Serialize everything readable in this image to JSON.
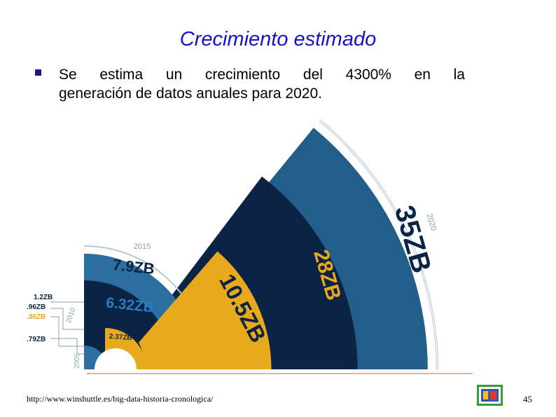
{
  "slide": {
    "title": "Crecimiento estimado",
    "bullet_line1": "Se estima un crecimiento del 4300% en la",
    "bullet_line2": "generación de datos anuales para 2020.",
    "source_url": "http://www.winshuttle.es/big-data-historia-cronologica/",
    "page_number": "45"
  },
  "chart_data": {
    "type": "radial-bar",
    "years": [
      "2005",
      "2010",
      "2015",
      "2020"
    ],
    "labels": {
      "big": [
        "35ZB",
        "28ZB",
        "10.5ZB",
        "7.9ZB",
        "6.32ZB",
        "2.37ZB"
      ],
      "small": [
        "1.2ZB",
        ".96ZB",
        ".36ZB",
        ".79ZB"
      ]
    },
    "colors": {
      "outer_blue": "#215e8a",
      "navy": "#0b2344",
      "gold": "#e8a91d",
      "light_blue": "#2a6fa0",
      "ring": "#b9c7d2",
      "red_line": "#d25a4a"
    }
  }
}
